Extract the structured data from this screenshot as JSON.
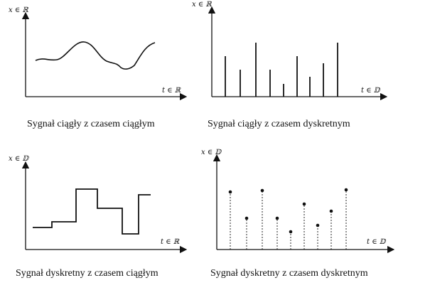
{
  "diagrams": [
    {
      "y_axis_label": "x ∈ ℝ",
      "x_axis_label": "t ∈ ℝ",
      "caption": "Sygnał ciągły z czasem ciągłym"
    },
    {
      "y_axis_label": "x ∈ ℝ",
      "x_axis_label": "t ∈ 𝔻",
      "caption": "Sygnał ciągły z czasem dyskretnym"
    },
    {
      "y_axis_label": "x ∈ 𝔻",
      "x_axis_label": "t ∈ ℝ",
      "caption": "Sygnał dyskretny z czasem ciągłym"
    },
    {
      "y_axis_label": "x ∈ 𝔻",
      "x_axis_label": "t ∈ 𝔻",
      "caption": "Sygnał dyskretny z czasem dyskretnym"
    }
  ],
  "colors": {
    "ink": "#111111"
  }
}
